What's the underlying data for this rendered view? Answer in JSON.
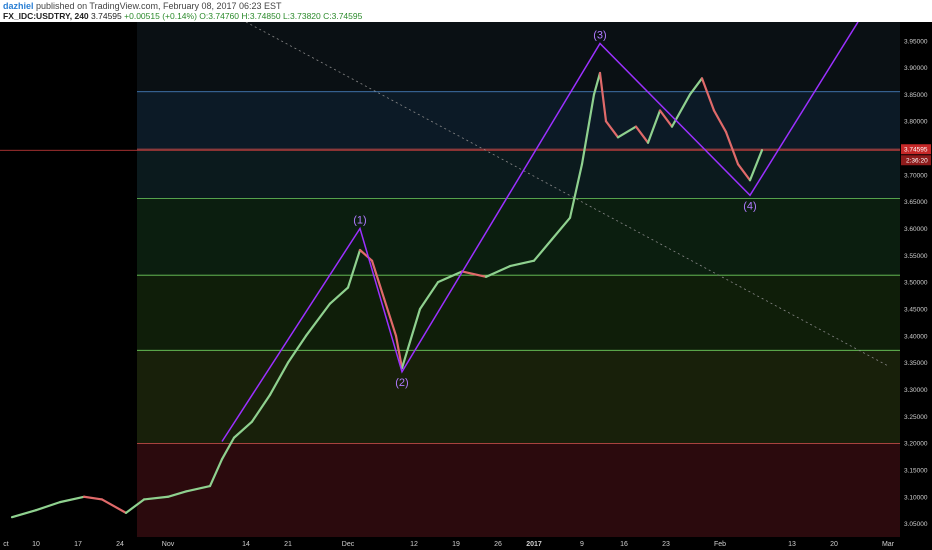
{
  "header": {
    "author": "dazhiel",
    "published": "published on TradingView.com, February 08, 2017 06:23 EST",
    "symbol": "FX_IDC:USDTRY, 240",
    "last": "3.74595",
    "change": "+0.00515 (+0.14%)",
    "ohlc": "O:3.74760 H:3.74850 L:3.73820 C:3.74595"
  },
  "colors": {
    "background": "#000000",
    "candle_up": "#8fd18f",
    "candle_down": "#e06a6a",
    "wave_line": "#9b30ff",
    "fib_blue": "#4f8fd8",
    "fib_red": "#d84f4f",
    "fib_green": "#6fcf5f",
    "price_line": "#d84040"
  },
  "chart_data": {
    "type": "line",
    "y_ticks": [
      "3.95000",
      "3.90000",
      "3.85000",
      "3.80000",
      "3.75000",
      "3.70000",
      "3.65000",
      "3.60000",
      "3.55000",
      "3.50000",
      "3.45000",
      "3.40000",
      "3.35000",
      "3.30000",
      "3.25000",
      "3.20000",
      "3.15000",
      "3.10000",
      "3.05000"
    ],
    "x_ticks": [
      "ct",
      "10",
      "17",
      "24",
      "Nov",
      "14",
      "21",
      "Dec",
      "12",
      "19",
      "26",
      "2017",
      "9",
      "16",
      "23",
      "Feb",
      "13",
      "20",
      "Mar"
    ],
    "ylim": [
      3.025,
      3.985
    ],
    "current_price": 3.74595,
    "price_badges": [
      "3.74595",
      "2:36:20"
    ],
    "fib_levels": [
      {
        "value": 3.855,
        "color": "blue"
      },
      {
        "value": 3.748,
        "color": "red"
      },
      {
        "value": 3.656,
        "color": "green"
      },
      {
        "value": 3.513,
        "color": "green"
      },
      {
        "value": 3.373,
        "color": "green"
      },
      {
        "value": 3.199,
        "color": "red"
      }
    ],
    "fib_zones": [
      {
        "from": 3.855,
        "to": 3.985,
        "color": "#0a1014"
      },
      {
        "from": 3.748,
        "to": 3.855,
        "color": "#0c1a26"
      },
      {
        "from": 3.656,
        "to": 3.748,
        "color": "#0b1a1d"
      },
      {
        "from": 3.513,
        "to": 3.656,
        "color": "#0b1e0f"
      },
      {
        "from": 3.373,
        "to": 3.513,
        "color": "#0f1e09"
      },
      {
        "from": 3.199,
        "to": 3.373,
        "color": "#18200a"
      },
      {
        "from": 3.025,
        "to": 3.199,
        "color": "#2b0a0d"
      }
    ],
    "price_path": [
      {
        "date": "2016-10-06",
        "price": 3.062
      },
      {
        "date": "2016-10-10",
        "price": 3.075
      },
      {
        "date": "2016-10-14",
        "price": 3.09
      },
      {
        "date": "2016-10-18",
        "price": 3.1
      },
      {
        "date": "2016-10-21",
        "price": 3.095
      },
      {
        "date": "2016-10-25",
        "price": 3.07
      },
      {
        "date": "2016-10-28",
        "price": 3.095
      },
      {
        "date": "2016-11-01",
        "price": 3.1
      },
      {
        "date": "2016-11-04",
        "price": 3.11
      },
      {
        "date": "2016-11-08",
        "price": 3.12
      },
      {
        "date": "2016-11-10",
        "price": 3.17
      },
      {
        "date": "2016-11-12",
        "price": 3.21
      },
      {
        "date": "2016-11-15",
        "price": 3.24
      },
      {
        "date": "2016-11-18",
        "price": 3.29
      },
      {
        "date": "2016-11-21",
        "price": 3.35
      },
      {
        "date": "2016-11-24",
        "price": 3.4
      },
      {
        "date": "2016-11-28",
        "price": 3.46
      },
      {
        "date": "2016-12-01",
        "price": 3.49
      },
      {
        "date": "2016-12-03",
        "price": 3.56
      },
      {
        "date": "2016-12-05",
        "price": 3.54
      },
      {
        "date": "2016-12-07",
        "price": 3.47
      },
      {
        "date": "2016-12-09",
        "price": 3.4
      },
      {
        "date": "2016-12-10",
        "price": 3.34
      },
      {
        "date": "2016-12-13",
        "price": 3.45
      },
      {
        "date": "2016-12-16",
        "price": 3.5
      },
      {
        "date": "2016-12-20",
        "price": 3.52
      },
      {
        "date": "2016-12-24",
        "price": 3.51
      },
      {
        "date": "2016-12-28",
        "price": 3.53
      },
      {
        "date": "2017-01-01",
        "price": 3.54
      },
      {
        "date": "2017-01-04",
        "price": 3.58
      },
      {
        "date": "2017-01-07",
        "price": 3.62
      },
      {
        "date": "2017-01-09",
        "price": 3.72
      },
      {
        "date": "2017-01-11",
        "price": 3.85
      },
      {
        "date": "2017-01-12",
        "price": 3.89
      },
      {
        "date": "2017-01-13",
        "price": 3.8
      },
      {
        "date": "2017-01-15",
        "price": 3.77
      },
      {
        "date": "2017-01-18",
        "price": 3.79
      },
      {
        "date": "2017-01-20",
        "price": 3.76
      },
      {
        "date": "2017-01-22",
        "price": 3.82
      },
      {
        "date": "2017-01-24",
        "price": 3.79
      },
      {
        "date": "2017-01-27",
        "price": 3.85
      },
      {
        "date": "2017-01-29",
        "price": 3.88
      },
      {
        "date": "2017-01-31",
        "price": 3.82
      },
      {
        "date": "2017-02-02",
        "price": 3.78
      },
      {
        "date": "2017-02-04",
        "price": 3.72
      },
      {
        "date": "2017-02-06",
        "price": 3.69
      },
      {
        "date": "2017-02-08",
        "price": 3.746
      }
    ],
    "wave_points": [
      {
        "label": "(1)",
        "date": "2016-12-03",
        "price": 3.6
      },
      {
        "label": "(2)",
        "date": "2016-12-10",
        "price": 3.333
      },
      {
        "label": "(3)",
        "date": "2017-01-12",
        "price": 3.945
      },
      {
        "label": "(4)",
        "date": "2017-02-06",
        "price": 3.662
      }
    ],
    "wave_path": [
      {
        "date": "2016-11-10",
        "price": 3.203
      },
      {
        "date": "2016-12-03",
        "price": 3.6
      },
      {
        "date": "2016-12-10",
        "price": 3.333
      },
      {
        "date": "2017-01-12",
        "price": 3.945
      },
      {
        "date": "2017-02-06",
        "price": 3.662
      },
      {
        "date": "2017-02-24",
        "price": 3.985
      }
    ],
    "trendline_dotted": [
      {
        "date": "2016-11-14",
        "price": 3.985
      },
      {
        "date": "2017-03-01",
        "price": 3.344
      }
    ]
  }
}
